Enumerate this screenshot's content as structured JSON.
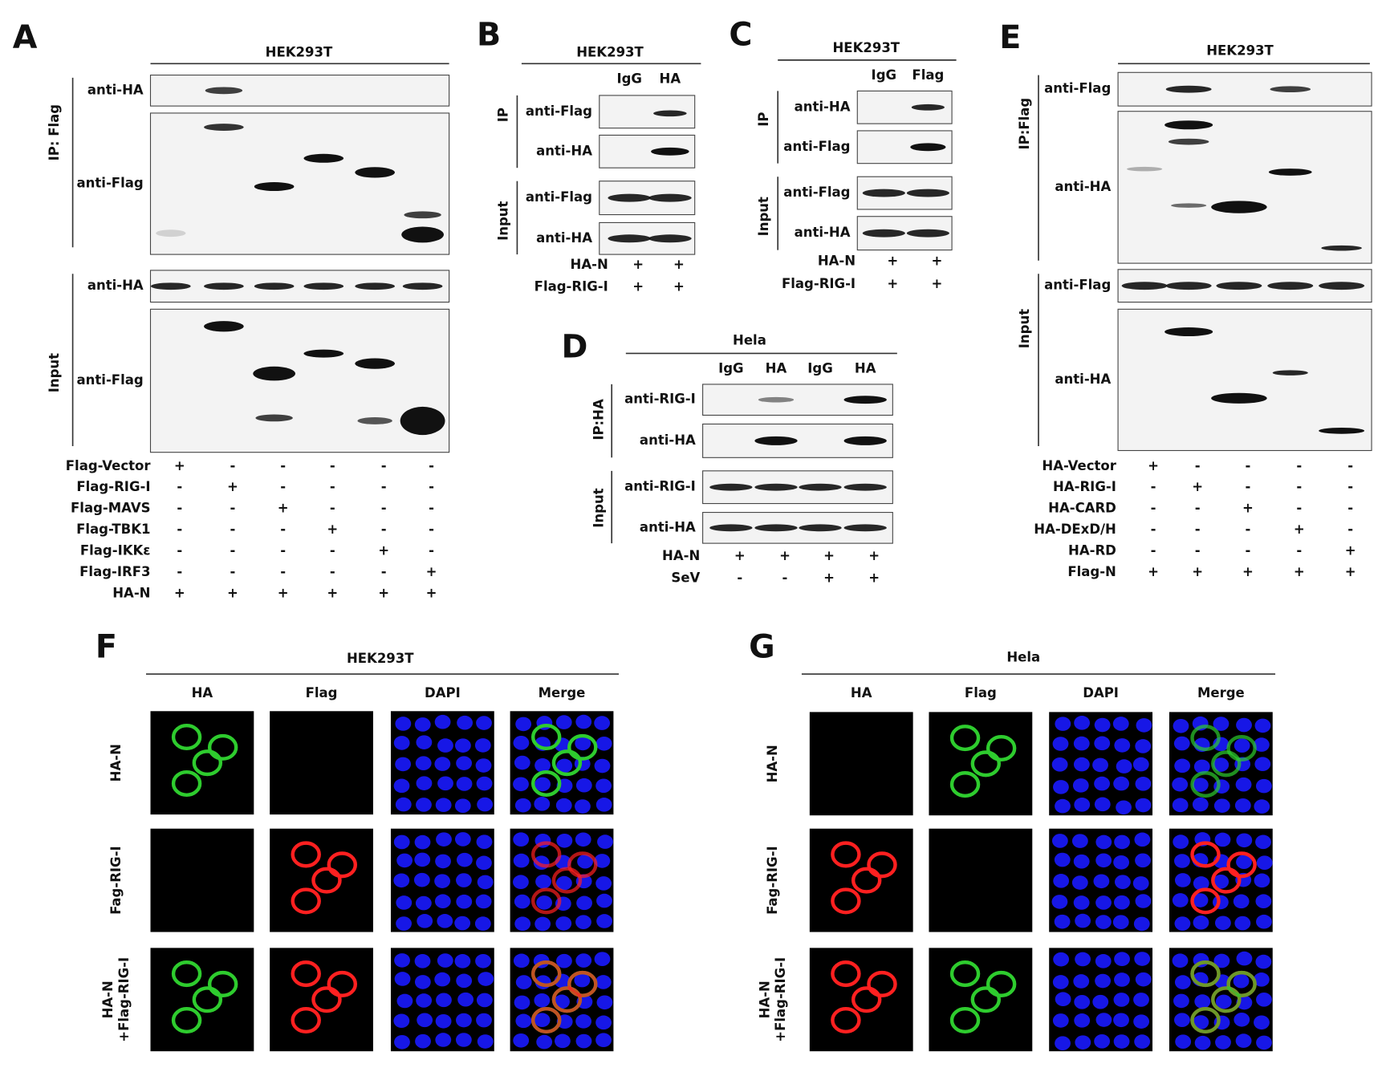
{
  "panels": [
    {
      "label": "A",
      "cell_line": "HEK293T",
      "groups": [
        "IP: Flag",
        "Input"
      ],
      "blots": [
        "anti-HA",
        "anti-Flag",
        "anti-HA",
        "anti-Flag"
      ],
      "treatments": [
        {
          "name": "Flag-Vector",
          "signs": [
            "+",
            "-",
            "-",
            "-",
            "-",
            "-"
          ]
        },
        {
          "name": "Flag-RIG-I",
          "signs": [
            "-",
            "+",
            "-",
            "-",
            "-",
            "-"
          ]
        },
        {
          "name": "Flag-MAVS",
          "signs": [
            "-",
            "-",
            "+",
            "-",
            "-",
            "-"
          ]
        },
        {
          "name": "Flag-TBK1",
          "signs": [
            "-",
            "-",
            "-",
            "+",
            "-",
            "-"
          ]
        },
        {
          "name": "Flag-IKKε",
          "signs": [
            "-",
            "-",
            "-",
            "-",
            "+",
            "-"
          ]
        },
        {
          "name": "Flag-IRF3",
          "signs": [
            "-",
            "-",
            "-",
            "-",
            "-",
            "+"
          ]
        },
        {
          "name": "HA-N",
          "signs": [
            "+",
            "+",
            "+",
            "+",
            "+",
            "+"
          ]
        }
      ]
    },
    {
      "label": "B",
      "cell_line": "HEK293T",
      "lanes": [
        "IgG",
        "HA"
      ],
      "groups": [
        "IP",
        "Input"
      ],
      "blots": [
        "anti-Flag",
        "anti-HA",
        "anti-Flag",
        "anti-HA"
      ],
      "treatments": [
        {
          "name": "HA-N",
          "signs": [
            "+",
            "+"
          ]
        },
        {
          "name": "Flag-RIG-I",
          "signs": [
            "+",
            "+"
          ]
        }
      ]
    },
    {
      "label": "C",
      "cell_line": "HEK293T",
      "lanes": [
        "IgG",
        "Flag"
      ],
      "groups": [
        "IP",
        "Input"
      ],
      "blots": [
        "anti-HA",
        "anti-Flag",
        "anti-Flag",
        "anti-HA"
      ],
      "treatments": [
        {
          "name": "HA-N",
          "signs": [
            "+",
            "+"
          ]
        },
        {
          "name": "Flag-RIG-I",
          "signs": [
            "+",
            "+"
          ]
        }
      ]
    },
    {
      "label": "D",
      "cell_line": "Hela",
      "lanes": [
        "IgG",
        "HA",
        "IgG",
        "HA"
      ],
      "groups": [
        "IP:HA",
        "Input"
      ],
      "blots": [
        "anti-RIG-I",
        "anti-HA",
        "anti-RIG-I",
        "anti-HA"
      ],
      "treatments": [
        {
          "name": "HA-N",
          "signs": [
            "+",
            "+",
            "+",
            "+"
          ]
        },
        {
          "name": "SeV",
          "signs": [
            "-",
            "-",
            "+",
            "+"
          ]
        }
      ]
    },
    {
      "label": "E",
      "cell_line": "HEK293T",
      "groups": [
        "IP:Flag",
        "Input"
      ],
      "blots": [
        "anti-Flag",
        "anti-HA",
        "anti-Flag",
        "anti-HA"
      ],
      "treatments": [
        {
          "name": "HA-Vector",
          "signs": [
            "+",
            "-",
            "-",
            "-",
            "-"
          ]
        },
        {
          "name": "HA-RIG-I",
          "signs": [
            "-",
            "+",
            "-",
            "-",
            "-"
          ]
        },
        {
          "name": "HA-CARD",
          "signs": [
            "-",
            "-",
            "+",
            "-",
            "-"
          ]
        },
        {
          "name": "HA-DExD/H",
          "signs": [
            "-",
            "-",
            "-",
            "+",
            "-"
          ]
        },
        {
          "name": "HA-RD",
          "signs": [
            "-",
            "-",
            "-",
            "-",
            "+"
          ]
        },
        {
          "name": "Flag-N",
          "signs": [
            "+",
            "+",
            "+",
            "+",
            "+"
          ]
        }
      ]
    }
  ],
  "microscopy": [
    {
      "label": "F",
      "cell_line": "HEK293T",
      "columns": [
        "HA",
        "Flag",
        "DAPI",
        "Merge"
      ],
      "rows": [
        [
          "HA-N"
        ],
        [
          "Fag-RIG-I"
        ],
        [
          "HA-N",
          "+Flag-RIG-I"
        ]
      ]
    },
    {
      "label": "G",
      "cell_line": "Hela",
      "columns": [
        "HA",
        "Flag",
        "DAPI",
        "Merge"
      ],
      "rows": [
        [
          "HA-N"
        ],
        [
          "Fag-RIG-I"
        ],
        [
          "HA-N",
          "+Flag-RIG-I"
        ]
      ]
    }
  ]
}
